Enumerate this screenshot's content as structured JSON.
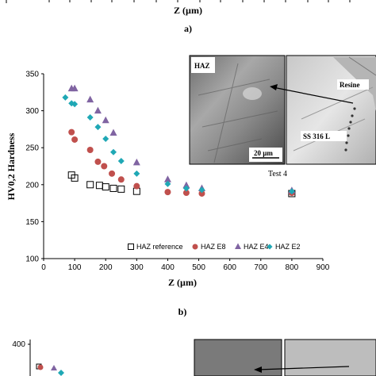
{
  "top_fragment": {
    "xlabel": "Z (µm)",
    "caption": "a)"
  },
  "chart_data": {
    "type": "scatter",
    "xlabel": "Z (µm)",
    "ylabel": "HV0,2 Hardness",
    "xlim": [
      0,
      900
    ],
    "ylim": [
      100,
      350
    ],
    "x_ticks": [
      0,
      100,
      200,
      300,
      400,
      500,
      600,
      700,
      800,
      900
    ],
    "y_ticks": [
      100,
      150,
      200,
      250,
      300,
      350
    ],
    "legend_position": "bottom",
    "grid": false,
    "series": [
      {
        "name": "HAZ  reference",
        "marker": "square-open",
        "color": "#000000",
        "x": [
          90,
          100,
          150,
          180,
          200,
          225,
          250,
          300,
          800
        ],
        "y": [
          213,
          209,
          200,
          199,
          197,
          195,
          194,
          191,
          188
        ]
      },
      {
        "name": "HAZ E8",
        "marker": "circle",
        "color": "#c0504d",
        "x": [
          90,
          100,
          150,
          175,
          195,
          220,
          250,
          300,
          400,
          460,
          510,
          800
        ],
        "y": [
          271,
          261,
          247,
          231,
          225,
          215,
          207,
          198,
          190,
          189,
          188,
          189
        ]
      },
      {
        "name": "HAZ E4",
        "marker": "triangle",
        "color": "#8064a2",
        "x": [
          90,
          100,
          150,
          175,
          200,
          225,
          300,
          400,
          460,
          510,
          800
        ],
        "y": [
          330,
          330,
          315,
          300,
          287,
          270,
          230,
          207,
          199,
          195,
          192
        ]
      },
      {
        "name": "HAZ E2",
        "marker": "diamond",
        "color": "#1fa8b5",
        "x": [
          70,
          90,
          100,
          150,
          175,
          200,
          225,
          250,
          300,
          400,
          460,
          510,
          800
        ],
        "y": [
          318,
          310,
          309,
          291,
          278,
          262,
          244,
          232,
          215,
          201,
          195,
          193,
          191
        ]
      }
    ],
    "caption": "b)"
  },
  "inset": {
    "left_label": "HAZ",
    "scale_bar": "20 µm",
    "right_top_label": "Resine",
    "right_bottom_label": "SS 316 L",
    "caption": "Test 4"
  },
  "bottom_fragment": {
    "y_tick_top": "400"
  }
}
